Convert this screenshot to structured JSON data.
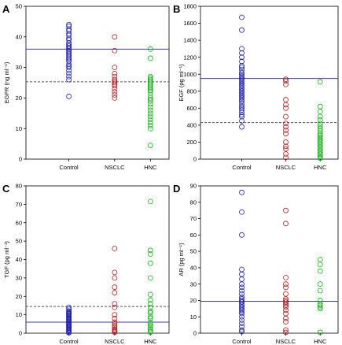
{
  "chart_data": [
    {
      "panel": "A",
      "type": "scatter",
      "ylabel": "EGFR (ng ml⁻¹)",
      "ylim": [
        0,
        50
      ],
      "yticks": [
        0,
        10,
        20,
        30,
        40,
        50
      ],
      "categories": [
        "Control",
        "NSCLC",
        "HNC"
      ],
      "reference_lines": [
        {
          "value": 36,
          "style": "solid",
          "color": "#3b3b9e"
        },
        {
          "value": 25.3,
          "style": "dashed",
          "color": "#555555"
        }
      ],
      "series": [
        {
          "category": "Control",
          "color": "#2020a8",
          "values": [
            44,
            43.5,
            42.5,
            42,
            41,
            40.5,
            39.5,
            39,
            38,
            37.5,
            37,
            36.5,
            36,
            35.5,
            35,
            34.5,
            34,
            33.5,
            33,
            32.5,
            32,
            31,
            30.5,
            30,
            29,
            28,
            27,
            26,
            20.5
          ]
        },
        {
          "category": "NSCLC",
          "color": "#b02020",
          "values": [
            40,
            35.5,
            30,
            28,
            27,
            26,
            25.5,
            25,
            24.5,
            24,
            23,
            22,
            21,
            20
          ]
        },
        {
          "category": "HNC",
          "color": "#20b020",
          "values": [
            36,
            33,
            27,
            26.5,
            26,
            25.5,
            25,
            24.5,
            24,
            23.5,
            23,
            22.5,
            22,
            21,
            20,
            19.5,
            19,
            18,
            17,
            16,
            15,
            14,
            13,
            12,
            11,
            10,
            4.5
          ]
        }
      ]
    },
    {
      "panel": "B",
      "type": "scatter",
      "ylabel": "EGF (pg ml⁻¹)",
      "ylim": [
        0,
        1800
      ],
      "yticks": [
        0,
        200,
        400,
        600,
        800,
        1000,
        1200,
        1400,
        1600,
        1800
      ],
      "categories": [
        "Control",
        "NSCLC",
        "HNC"
      ],
      "reference_lines": [
        {
          "value": 950,
          "style": "solid",
          "color": "#3b3b9e"
        },
        {
          "value": 430,
          "style": "dashed",
          "color": "#555555"
        }
      ],
      "series": [
        {
          "category": "Control",
          "color": "#2020a8",
          "values": [
            1670,
            1520,
            1300,
            1250,
            1200,
            1150,
            1100,
            1080,
            1050,
            1020,
            1000,
            980,
            960,
            940,
            920,
            900,
            880,
            860,
            840,
            820,
            800,
            780,
            760,
            740,
            720,
            700,
            680,
            650,
            620,
            600,
            580,
            550,
            520,
            500,
            450,
            380
          ]
        },
        {
          "category": "NSCLC",
          "color": "#b02020",
          "values": [
            940,
            920,
            880,
            700,
            640,
            600,
            500,
            420,
            380,
            340,
            300,
            200,
            150,
            120,
            60,
            20
          ]
        },
        {
          "category": "HNC",
          "color": "#20b020",
          "values": [
            910,
            620,
            560,
            500,
            460,
            420,
            390,
            360,
            330,
            300,
            280,
            260,
            240,
            220,
            200,
            180,
            160,
            140,
            120,
            100,
            80,
            60,
            40,
            20,
            10
          ]
        }
      ]
    },
    {
      "panel": "C",
      "type": "scatter",
      "ylabel": "TGF (pg ml⁻¹)",
      "ylim": [
        0,
        80
      ],
      "yticks": [
        0,
        10,
        20,
        30,
        40,
        50,
        60,
        70,
        80
      ],
      "categories": [
        "Control",
        "NSCLC",
        "HNC"
      ],
      "reference_lines": [
        {
          "value": 6,
          "style": "solid",
          "color": "#3b3b9e"
        },
        {
          "value": 14.5,
          "style": "dashed",
          "color": "#555555"
        }
      ],
      "series": [
        {
          "category": "Control",
          "color": "#2020a8",
          "values": [
            14,
            13,
            12,
            11.5,
            11,
            10.5,
            10,
            9.5,
            9,
            8.5,
            8,
            7.5,
            7,
            6.5,
            6,
            5.5,
            5,
            4.5,
            4,
            3.5,
            3,
            2.5,
            2,
            1.5,
            1,
            0.5,
            0.2
          ]
        },
        {
          "category": "NSCLC",
          "color": "#b02020",
          "values": [
            46,
            33,
            30,
            25,
            22,
            16,
            14,
            10,
            8,
            6,
            5,
            4,
            3,
            2,
            1.5,
            1,
            0.5
          ]
        },
        {
          "category": "HNC",
          "color": "#20b020",
          "values": [
            71.5,
            45,
            43,
            38,
            30,
            21,
            18,
            16,
            14,
            12,
            11,
            9,
            8,
            6,
            5,
            4,
            3,
            2,
            1,
            0.5
          ]
        }
      ]
    },
    {
      "panel": "D",
      "type": "scatter",
      "ylabel": "AR (pg ml⁻¹)",
      "ylim": [
        0,
        90
      ],
      "yticks": [
        0,
        10,
        20,
        30,
        40,
        50,
        60,
        70,
        80,
        90
      ],
      "categories": [
        "Control",
        "NSCLC",
        "HNC"
      ],
      "reference_lines": [
        {
          "value": 19.5,
          "style": "solid",
          "color": "#3b3b9e"
        }
      ],
      "series": [
        {
          "category": "Control",
          "color": "#2020a8",
          "values": [
            86,
            74,
            60,
            39,
            36,
            33,
            30,
            28,
            26,
            24,
            22,
            21,
            20,
            19,
            18,
            17,
            16,
            15,
            14,
            13,
            12,
            10,
            8,
            6,
            4,
            2,
            1
          ]
        },
        {
          "category": "NSCLC",
          "color": "#b02020",
          "values": [
            75,
            67,
            34,
            30,
            28,
            24,
            21,
            20,
            19,
            18,
            17,
            16,
            14,
            12,
            9,
            7,
            2,
            0.5
          ]
        },
        {
          "category": "HNC",
          "color": "#20b020",
          "values": [
            45,
            42,
            38,
            30,
            26,
            20,
            18,
            17,
            16,
            15,
            0.5
          ]
        }
      ]
    }
  ]
}
